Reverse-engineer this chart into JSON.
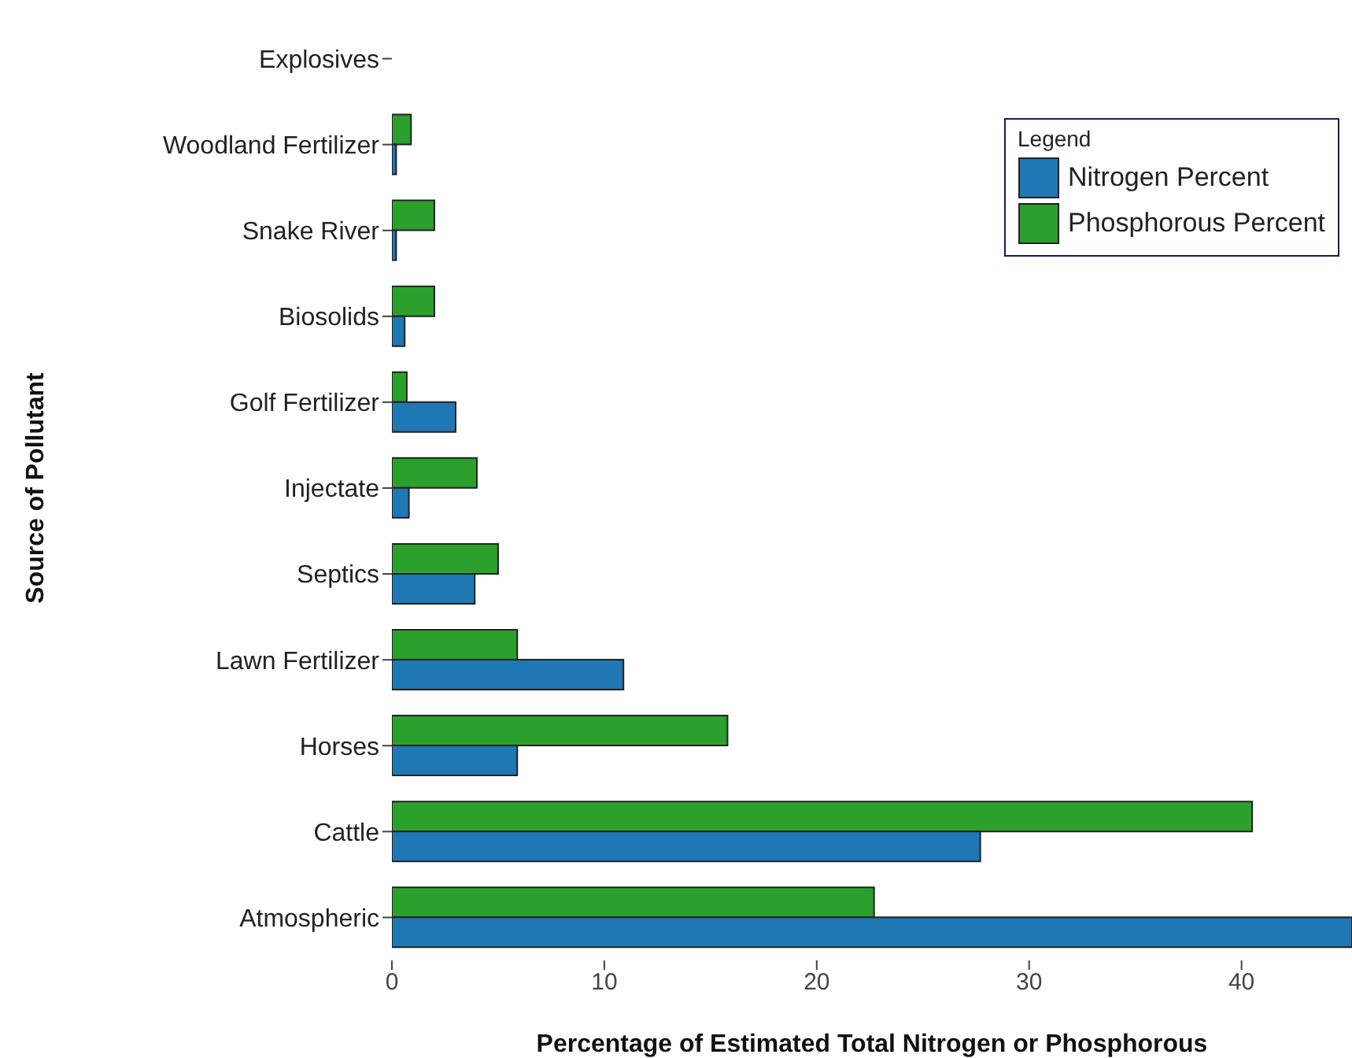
{
  "chart_data": {
    "type": "bar",
    "orientation": "horizontal",
    "xlabel": "Percentage of Estimated Total Nitrogen or Phosphorous",
    "ylabel": "Source of Pollutant",
    "legend_title": "Legend",
    "legend": "top right",
    "categories": [
      "Explosives",
      "Woodland Fertilizer",
      "Snake River",
      "Biosolids",
      "Golf Fertilizer",
      "Injectate",
      "Septics",
      "Lawn Fertilizer",
      "Horses",
      "Cattle",
      "Atmospheric"
    ],
    "series": [
      {
        "name": "Nitrogen Percent",
        "color": "#1f77b4",
        "values": [
          0,
          0.2,
          0.2,
          0.6,
          3.0,
          0.8,
          3.9,
          10.9,
          5.9,
          27.7,
          45.2
        ]
      },
      {
        "name": "Phosphorous Percent",
        "color": "#2ca02c",
        "values": [
          0,
          0.9,
          2.0,
          2.0,
          0.7,
          4.0,
          5.0,
          5.9,
          15.8,
          40.5,
          22.7
        ]
      }
    ],
    "xlim": [
      0,
      45.2
    ],
    "xticks": [
      0,
      10,
      20,
      30,
      40
    ]
  }
}
